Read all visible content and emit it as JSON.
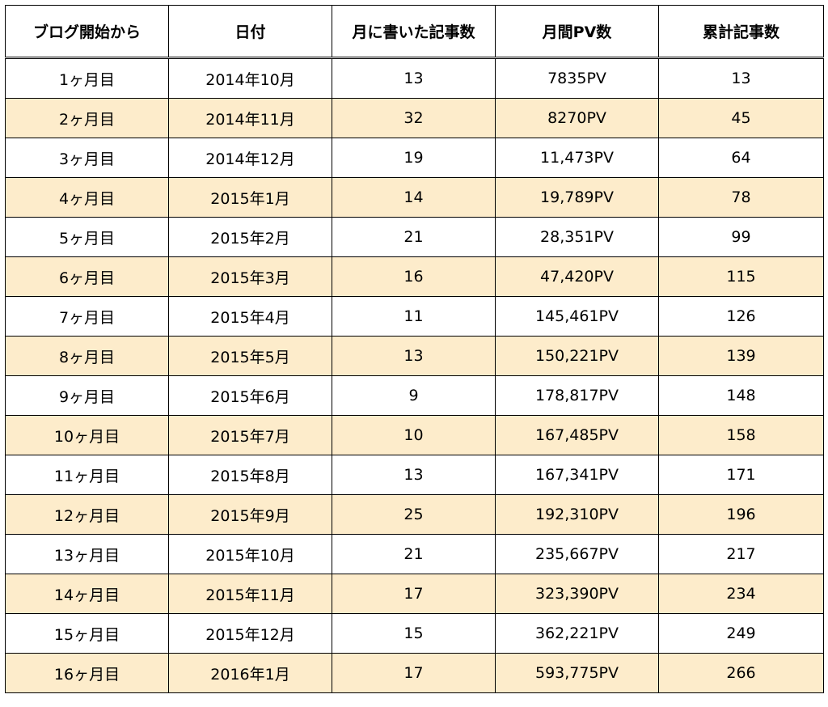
{
  "table": {
    "headers": [
      "ブログ開始から",
      "日付",
      "月に書いた記事数",
      "月間PV数",
      "累計記事数"
    ],
    "rows": [
      [
        "1ヶ月目",
        "2014年10月",
        "13",
        "7835PV",
        "13"
      ],
      [
        "2ヶ月目",
        "2014年11月",
        "32",
        "8270PV",
        "45"
      ],
      [
        "3ヶ月目",
        "2014年12月",
        "19",
        "11,473PV",
        "64"
      ],
      [
        "4ヶ月目",
        "2015年1月",
        "14",
        "19,789PV",
        "78"
      ],
      [
        "5ヶ月目",
        "2015年2月",
        "21",
        "28,351PV",
        "99"
      ],
      [
        "6ヶ月目",
        "2015年3月",
        "16",
        "47,420PV",
        "115"
      ],
      [
        "7ヶ月目",
        "2015年4月",
        "11",
        "145,461PV",
        "126"
      ],
      [
        "8ヶ月目",
        "2015年5月",
        "13",
        "150,221PV",
        "139"
      ],
      [
        "9ヶ月目",
        "2015年6月",
        "9",
        "178,817PV",
        "148"
      ],
      [
        "10ヶ月目",
        "2015年7月",
        "10",
        "167,485PV",
        "158"
      ],
      [
        "11ヶ月目",
        "2015年8月",
        "13",
        "167,341PV",
        "171"
      ],
      [
        "12ヶ月目",
        "2015年9月",
        "25",
        "192,310PV",
        "196"
      ],
      [
        "13ヶ月目",
        "2015年10月",
        "21",
        "235,667PV",
        "217"
      ],
      [
        "14ヶ月目",
        "2015年11月",
        "17",
        "323,390PV",
        "234"
      ],
      [
        "15ヶ月目",
        "2015年12月",
        "15",
        "362,221PV",
        "249"
      ],
      [
        "16ヶ月目",
        "2016年1月",
        "17",
        "593,775PV",
        "266"
      ]
    ]
  },
  "colors": {
    "stripe": "#fdeccb",
    "background": "#ffffff",
    "border": "#000000"
  }
}
